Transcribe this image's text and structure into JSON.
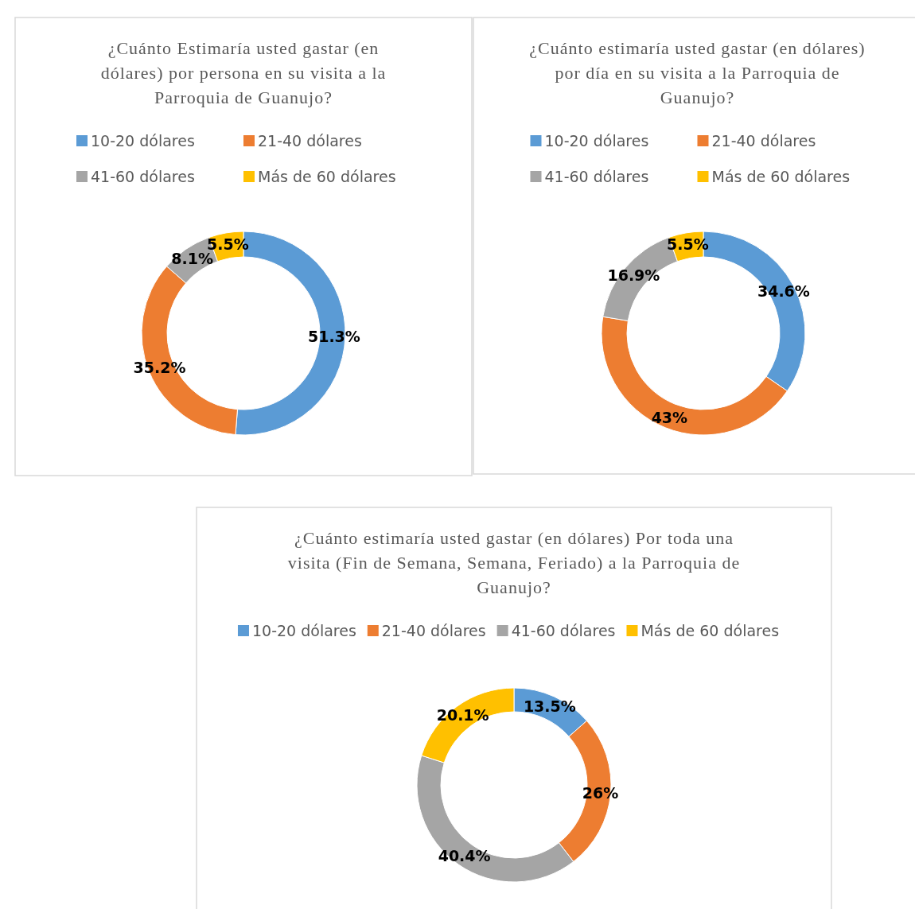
{
  "chart_data": [
    {
      "type": "donut",
      "title": "¿Cuánto Estimaría usted gastar (en dólares) por persona en su visita a la Parroquia de Guanujo?",
      "categories": [
        "10-20 dólares",
        "21-40 dólares",
        "41-60 dólares",
        "Más de 60 dólares"
      ],
      "values": [
        51.3,
        35.2,
        8.1,
        5.5
      ],
      "value_labels": [
        "51.3%",
        "35.2%",
        "8.1%",
        "5.5%"
      ],
      "colors": [
        "#5b9bd5",
        "#ed7d31",
        "#a5a5a5",
        "#ffc000"
      ],
      "legend": "top"
    },
    {
      "type": "donut",
      "title": "¿Cuánto estimaría usted gastar (en dólares) por día en su visita a la Parroquia de Guanujo?",
      "categories": [
        "10-20 dólares",
        "21-40 dólares",
        "41-60 dólares",
        "Más de 60 dólares"
      ],
      "values": [
        34.6,
        43,
        16.9,
        5.5
      ],
      "value_labels": [
        "34.6%",
        "43%",
        "16.9%",
        "5.5%"
      ],
      "colors": [
        "#5b9bd5",
        "#ed7d31",
        "#a5a5a5",
        "#ffc000"
      ],
      "legend": "top"
    },
    {
      "type": "donut",
      "title": "¿Cuánto estimaría usted gastar (en dólares) Por toda una visita (Fin de Semana, Semana, Feriado) a la Parroquia de Guanujo?",
      "categories": [
        "10-20 dólares",
        "21-40 dólares",
        "41-60 dólares",
        "Más de 60 dólares"
      ],
      "values": [
        13.5,
        26,
        40.4,
        20.1
      ],
      "value_labels": [
        "13.5%",
        "26%",
        "40.4%",
        "20.1%"
      ],
      "colors": [
        "#5b9bd5",
        "#ed7d31",
        "#a5a5a5",
        "#ffc000"
      ],
      "legend": "top"
    }
  ]
}
